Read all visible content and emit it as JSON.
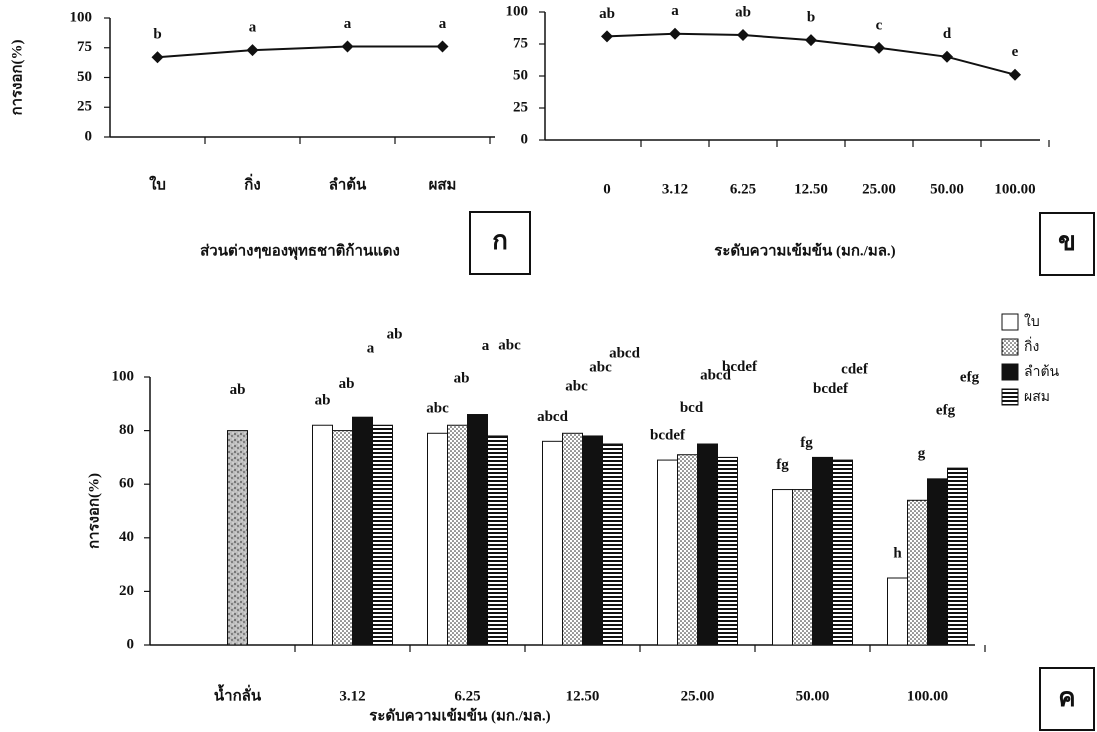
{
  "chart_data": [
    {
      "type": "line",
      "panel_label": "ก",
      "ylabel": "การงอก(%)",
      "xlabel": "ส่วนต่างๆของพุทธชาติก้านแดง",
      "categories": [
        "ใบ",
        "กิ่ง",
        "ลำต้น",
        "ผสม"
      ],
      "values": [
        67,
        73,
        76,
        76
      ],
      "annotations": [
        "b",
        "a",
        "a",
        "a"
      ],
      "color": "#111111",
      "ylim": [
        0,
        100
      ],
      "yticks": [
        0,
        25,
        50,
        75,
        100
      ]
    },
    {
      "type": "line",
      "panel_label": "ข",
      "xlabel": "ระดับความเข้มข้น (มก./มล.)",
      "categories": [
        "0",
        "3.12",
        "6.25",
        "12.50",
        "25.00",
        "50.00",
        "100.00"
      ],
      "values": [
        81,
        83,
        82,
        78,
        72,
        65,
        51
      ],
      "annotations": [
        "ab",
        "a",
        "ab",
        "b",
        "c",
        "d",
        "e"
      ],
      "color": "#111111",
      "ylim": [
        0,
        100
      ],
      "yticks": [
        0,
        25,
        50,
        75,
        100
      ]
    },
    {
      "type": "bar",
      "panel_label": "ค",
      "ylabel": "การงอก(%)",
      "xlabel": "ระดับความเข้มข้น (มก./มล.)",
      "categories": [
        "น้ำกลั่น",
        "3.12",
        "6.25",
        "12.50",
        "25.00",
        "50.00",
        "100.00"
      ],
      "control": {
        "value": 80,
        "annotation": "ab",
        "pattern": "speckle"
      },
      "series": [
        {
          "name": "ใบ",
          "pattern": "none",
          "values": [
            null,
            82,
            79,
            76,
            69,
            58,
            25
          ],
          "annotations": [
            null,
            "ab",
            "abc",
            "abcd",
            "bcdef",
            "fg",
            "h"
          ]
        },
        {
          "name": "กิ่ง",
          "pattern": "dots",
          "values": [
            null,
            80,
            82,
            79,
            71,
            58,
            54
          ],
          "annotations": [
            null,
            "ab",
            "ab",
            "abc",
            "bcd",
            "fg",
            "g"
          ]
        },
        {
          "name": "ลำต้น",
          "pattern": "solid",
          "values": [
            null,
            85,
            86,
            78,
            75,
            70,
            62
          ],
          "annotations": [
            null,
            "a",
            "a",
            "abc",
            "abcd",
            "bcdef",
            "efg"
          ]
        },
        {
          "name": "ผสม",
          "pattern": "stripes",
          "values": [
            null,
            82,
            78,
            75,
            70,
            69,
            66
          ],
          "annotations": [
            null,
            "ab",
            "abc",
            "abcd",
            "bcdef",
            "cdef",
            "efg"
          ]
        }
      ],
      "ylim": [
        0,
        100
      ],
      "yticks": [
        0,
        20,
        40,
        60,
        80,
        100
      ]
    }
  ]
}
